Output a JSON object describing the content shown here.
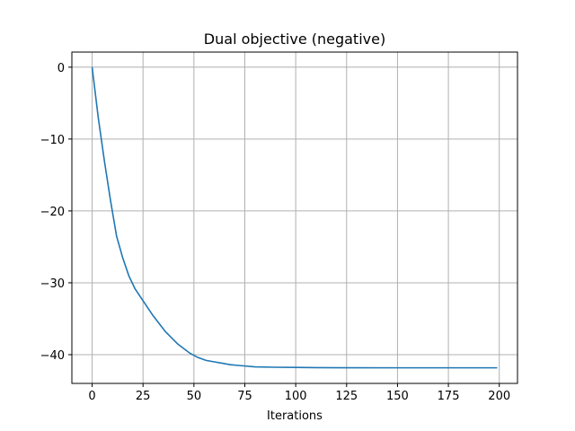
{
  "chart_data": {
    "type": "line",
    "title": "Dual objective (negative)",
    "xlabel": "Iterations",
    "ylabel": "",
    "xlim": [
      -9.95,
      208.95
    ],
    "ylim": [
      -44.0,
      2.1
    ],
    "xticks": [
      0,
      25,
      50,
      75,
      100,
      125,
      150,
      175,
      200
    ],
    "yticks": [
      0,
      -10,
      -20,
      -30,
      -40
    ],
    "grid": true,
    "series": [
      {
        "color": "#1f77b4",
        "x": [
          0,
          3,
          6,
          9,
          12,
          15,
          18,
          21,
          25,
          30,
          36,
          42,
          48,
          52,
          56,
          60,
          64,
          68,
          72,
          80,
          90,
          100,
          110,
          125,
          150,
          175,
          199
        ],
        "y": [
          0,
          -7,
          -13,
          -18.5,
          -23.5,
          -26.5,
          -29,
          -30.8,
          -32.5,
          -34.6,
          -36.8,
          -38.5,
          -39.8,
          -40.4,
          -40.8,
          -41.0,
          -41.2,
          -41.4,
          -41.5,
          -41.7,
          -41.75,
          -41.78,
          -41.8,
          -41.82,
          -41.83,
          -41.83,
          -41.83
        ]
      }
    ]
  }
}
